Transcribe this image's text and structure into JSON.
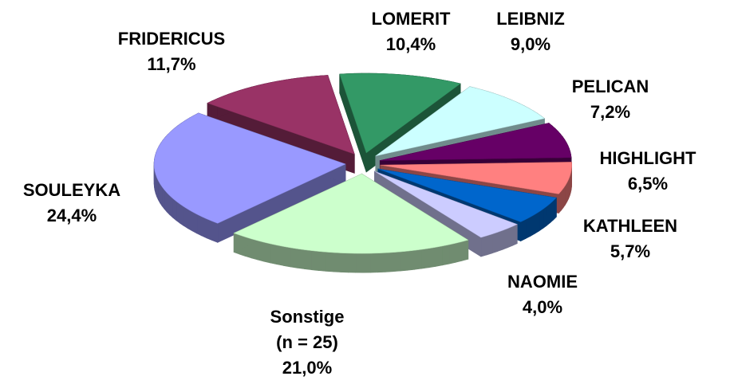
{
  "chart_data": {
    "type": "pie",
    "categories": [
      "LOMERIT",
      "LEIBNIZ",
      "PELICAN",
      "HIGHLIGHT",
      "KATHLEEN",
      "NAOMIE",
      "Sonstige (n = 25)",
      "SOULEYKA",
      "FRIDERICUS"
    ],
    "values": [
      10.4,
      9.0,
      7.2,
      6.5,
      5.7,
      4.0,
      21.0,
      24.4,
      11.7
    ],
    "value_labels": [
      "10,4%",
      "9,0%",
      "7,2%",
      "6,5%",
      "5,7%",
      "4,0%",
      "21,0%",
      "24,4%",
      "11,7%"
    ],
    "colors": [
      "#339966",
      "#ccffff",
      "#660066",
      "#ff8080",
      "#0066cc",
      "#ccccff",
      "#ccffcc",
      "#9999ff",
      "#993366"
    ]
  }
}
